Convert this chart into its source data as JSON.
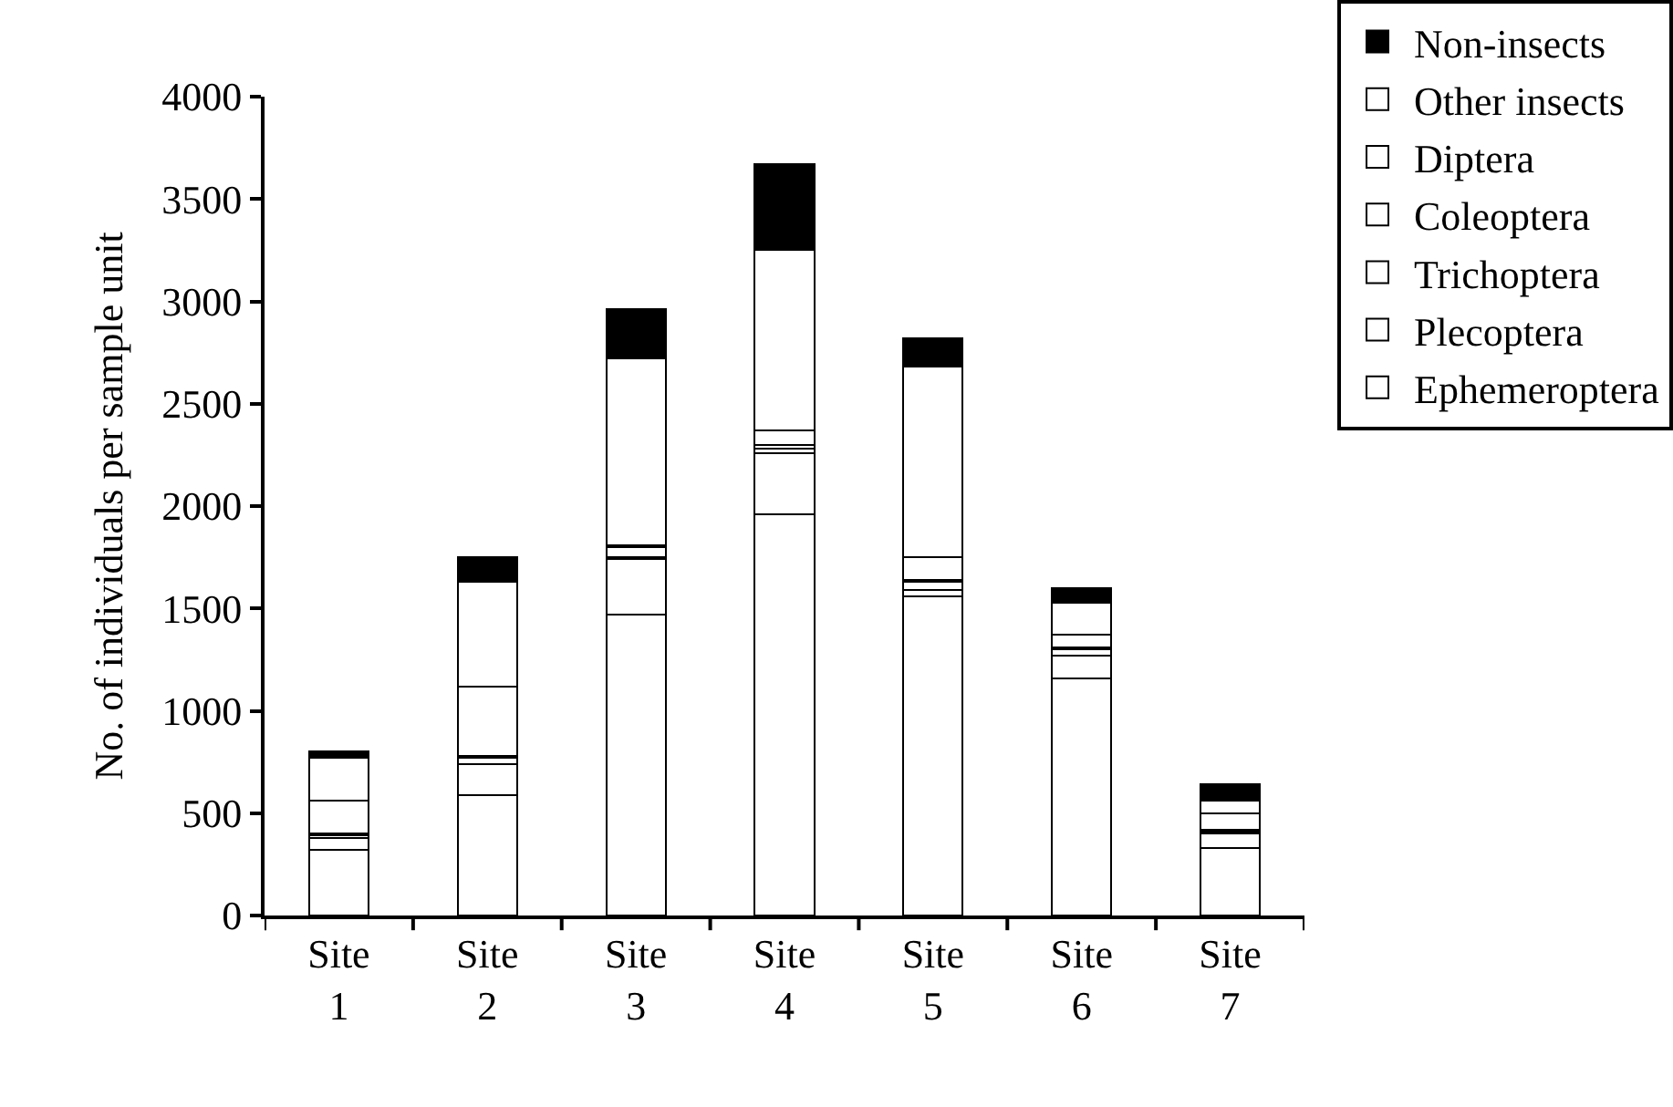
{
  "chart_data": {
    "type": "bar",
    "stacked": true,
    "ylabel": "No. of individuals per sample unit",
    "categories": [
      "Site 1",
      "Site 2",
      "Site 3",
      "Site 4",
      "Site 5",
      "Site 6",
      "Site 7"
    ],
    "series": [
      {
        "name": "Ephemeroptera",
        "color": "#ffffff",
        "values": [
          320,
          590,
          1470,
          1960,
          1560,
          1160,
          330
        ]
      },
      {
        "name": "Plecoptera",
        "color": "#ffffff",
        "values": [
          60,
          150,
          270,
          300,
          30,
          110,
          70
        ]
      },
      {
        "name": "Trichoptera",
        "color": "#ffffff",
        "values": [
          10,
          30,
          10,
          20,
          40,
          30,
          10
        ]
      },
      {
        "name": "Coleoptera",
        "color": "#ffffff",
        "values": [
          10,
          10,
          50,
          20,
          10,
          10,
          10
        ]
      },
      {
        "name": "Diptera",
        "color": "#ffffff",
        "values": [
          160,
          340,
          10,
          70,
          110,
          60,
          80
        ]
      },
      {
        "name": "Other insects",
        "color": "#ffffff",
        "values": [
          210,
          510,
          910,
          880,
          930,
          160,
          60
        ]
      },
      {
        "name": "Non-insects",
        "color": "#000000",
        "values": [
          30,
          120,
          240,
          420,
          140,
          70,
          80
        ]
      }
    ],
    "ylim": [
      0,
      4000
    ],
    "yticks": [
      0,
      500,
      1000,
      1500,
      2000,
      2500,
      3000,
      3500,
      4000
    ],
    "legend": "top right"
  }
}
